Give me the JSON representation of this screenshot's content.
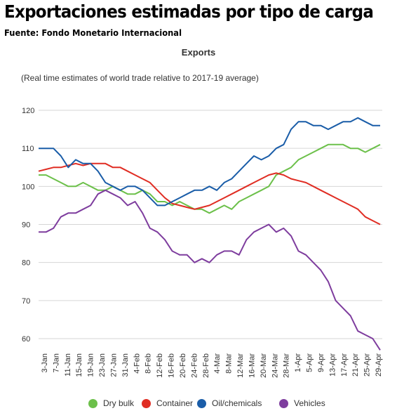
{
  "header": {
    "headline": "Exportaciones estimadas por tipo de carga",
    "source": "Fuente: Fondo Monetario Internacional"
  },
  "chart_data": {
    "type": "line",
    "title": "Exports",
    "subtitle": "(Real time estimates of world trade relative to 2017-19 average)",
    "xlabel": "",
    "ylabel": "",
    "ylim": [
      55,
      122
    ],
    "y_ticks": [
      60,
      70,
      80,
      90,
      100,
      110,
      120
    ],
    "grid": true,
    "legend_position": "bottom",
    "x_tick_labels": [
      "3-Jan",
      "7-Jan",
      "11-Jan",
      "15-Jan",
      "19-Jan",
      "23-Jan",
      "27-Jan",
      "31-Jan",
      "4-Feb",
      "8-Feb",
      "12-Feb",
      "16-Feb",
      "20-Feb",
      "24-Feb",
      "28-Feb",
      "4-Mar",
      "8-Mar",
      "12-Mar",
      "16-Mar",
      "20-Mar",
      "24-Mar",
      "28-Mar",
      "1-Apr",
      "5-Apr",
      "9-Apr",
      "13-Apr",
      "17-Apr",
      "21-Apr",
      "25-Apr",
      "29-Apr"
    ],
    "series": [
      {
        "name": "Dry bulk",
        "color": "#6cc04a",
        "values": [
          103,
          103,
          102,
          101,
          100,
          100,
          101,
          100,
          99,
          99,
          100,
          99,
          98,
          98,
          99,
          98,
          96,
          96,
          95,
          96,
          95,
          94,
          94,
          93,
          94,
          95,
          94,
          96,
          97,
          98,
          99,
          100,
          103,
          104,
          105,
          107,
          108,
          109,
          110,
          111,
          111,
          111,
          110,
          110,
          109,
          110,
          111
        ]
      },
      {
        "name": "Container",
        "color": "#e02d23",
        "values": [
          104,
          104.5,
          105,
          105,
          105.5,
          106,
          105.5,
          106,
          106,
          106,
          105,
          105,
          104,
          103,
          102,
          101,
          99,
          97,
          95.5,
          95,
          94.5,
          94,
          94.5,
          95,
          96,
          97,
          98,
          99,
          100,
          101,
          102,
          103,
          103.5,
          103,
          102,
          101.5,
          101,
          100,
          99,
          98,
          97,
          96,
          95,
          94,
          92,
          91,
          90
        ]
      },
      {
        "name": "Oil/chemicals",
        "color": "#1a5da8",
        "values": [
          110,
          110,
          110,
          108,
          105,
          107,
          106,
          106,
          104,
          101,
          100,
          99,
          100,
          100,
          99,
          97,
          95,
          95,
          96,
          97,
          98,
          99,
          99,
          100,
          99,
          101,
          102,
          104,
          106,
          108,
          107,
          108,
          110,
          111,
          115,
          117,
          117,
          116,
          116,
          115,
          116,
          117,
          117,
          118,
          117,
          116,
          116
        ]
      },
      {
        "name": "Vehicles",
        "color": "#7e3d9e",
        "values": [
          88,
          88,
          89,
          92,
          93,
          93,
          94,
          95,
          98,
          99,
          98,
          97,
          95,
          96,
          93,
          89,
          88,
          86,
          83,
          82,
          82,
          80,
          81,
          80,
          82,
          83,
          83,
          82,
          86,
          88,
          89,
          90,
          88,
          89,
          87,
          83,
          82,
          80,
          78,
          75,
          70,
          68,
          66,
          62,
          61,
          60,
          57
        ]
      }
    ]
  }
}
